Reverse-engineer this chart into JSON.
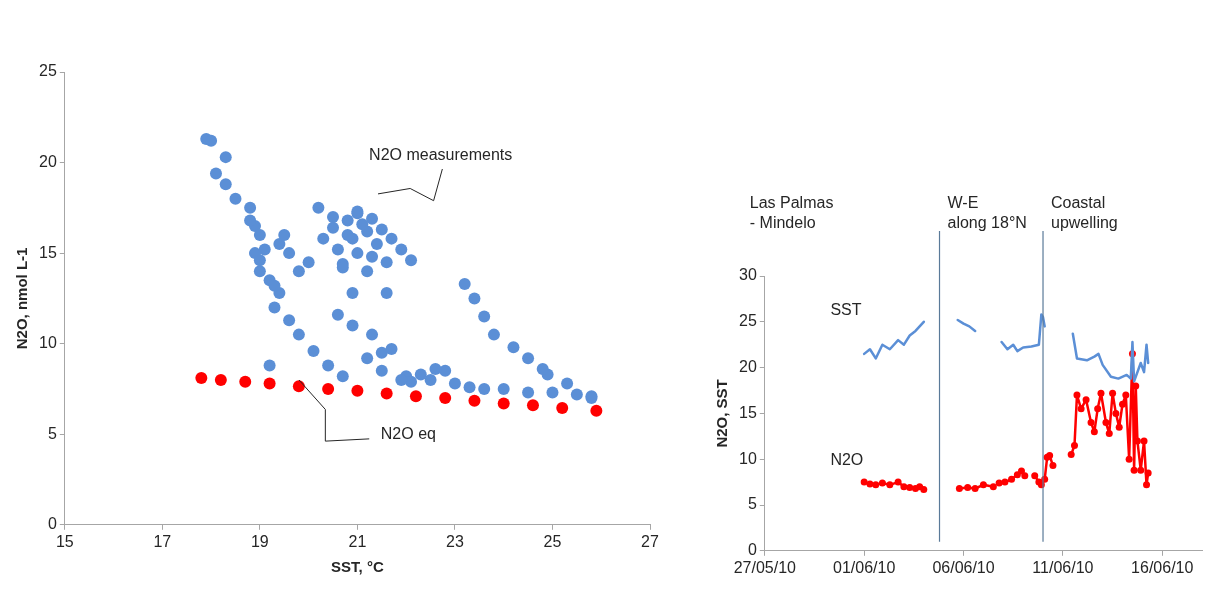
{
  "chart_data": [
    {
      "type": "scatter",
      "xlabel": "SST, °C",
      "ylabel": "N2O, nmol L-1",
      "xlim": [
        15,
        27
      ],
      "xticks": [
        15,
        17,
        19,
        21,
        23,
        25,
        27
      ],
      "ylim": [
        0,
        25
      ],
      "yticks": [
        0,
        5,
        10,
        15,
        20,
        25
      ],
      "marker": "circle",
      "series": [
        {
          "name": "N2O measurements",
          "color": "#5b8fd6",
          "x": [
            17.9,
            18.0,
            18.3,
            18.1,
            18.3,
            18.5,
            18.8,
            18.9,
            19.0,
            18.9,
            19.0,
            19.2,
            19.4,
            19.3,
            19.6,
            19.8,
            20.1,
            20.4,
            20.7,
            19.4,
            19.6,
            19.8,
            19.5,
            20.0,
            18.8,
            19.1,
            19.3,
            19.0,
            20.2,
            20.5,
            21.0,
            20.8,
            21.2,
            21.4,
            21.0,
            20.6,
            21.3,
            21.6,
            21.2,
            20.5,
            20.9,
            21.1,
            20.7,
            20.6,
            20.9,
            21.3,
            21.5,
            21.2,
            21.7,
            21.5,
            22.0,
            22.5,
            23.0,
            22.3,
            22.8,
            23.3,
            23.6,
            24.0,
            24.5,
            25.0,
            25.5,
            25.8,
            23.2,
            23.4,
            23.6,
            23.8,
            24.2,
            24.5,
            24.9,
            25.3,
            25.8,
            24.8,
            19.2,
            21.6,
            22.1,
            22.6,
            21.9,
            20.9,
            21.0,
            21.3,
            20.8,
            21.5,
            21.7,
            21.9,
            22.1,
            20.3,
            20.7
          ],
          "values": [
            21.3,
            21.2,
            20.3,
            19.4,
            18.8,
            18.0,
            17.5,
            16.5,
            16.0,
            15.0,
            14.0,
            13.5,
            12.8,
            12.0,
            11.3,
            10.5,
            9.6,
            8.8,
            8.2,
            15.5,
            15.0,
            14.0,
            16.0,
            14.5,
            16.8,
            15.2,
            13.2,
            14.6,
            17.5,
            17.0,
            17.2,
            16.0,
            16.2,
            15.5,
            15.0,
            15.2,
            14.8,
            14.5,
            14.0,
            16.4,
            15.8,
            16.6,
            14.4,
            11.6,
            11.0,
            10.5,
            9.5,
            9.2,
            9.7,
            8.5,
            8.2,
            8.0,
            7.8,
            8.3,
            8.5,
            7.6,
            7.5,
            7.5,
            7.3,
            7.3,
            7.2,
            7.1,
            13.3,
            12.5,
            11.5,
            10.5,
            9.8,
            9.2,
            8.3,
            7.8,
            7.0,
            8.6,
            8.8,
            12.8,
            7.9,
            8.6,
            8.0,
            12.8,
            17.3,
            16.9,
            16.8,
            16.3,
            15.8,
            15.2,
            14.6,
            15.8,
            14.2
          ]
        },
        {
          "name": "N2O eq",
          "color": "#ff0000",
          "x": [
            17.8,
            18.2,
            18.7,
            19.2,
            19.8,
            20.4,
            21.0,
            21.6,
            22.2,
            22.8,
            23.4,
            24.0,
            24.6,
            25.2,
            25.9
          ],
          "values": [
            8.1,
            8.0,
            7.9,
            7.8,
            7.65,
            7.5,
            7.4,
            7.25,
            7.1,
            7.0,
            6.85,
            6.7,
            6.6,
            6.45,
            6.3
          ]
        }
      ]
    },
    {
      "type": "line",
      "ylabel": "N2O, SST",
      "annotations": [
        "Las Palmas\n- Mindelo",
        "W-E\nalong 18°N",
        "Coastal\nupwelling"
      ],
      "xlim": [
        "--05-27",
        "--06-18"
      ],
      "xticks": [
        {
          "value": "--05-27",
          "label": "27/05/10"
        },
        {
          "value": "--06-01",
          "label": "01/06/10"
        },
        {
          "value": "--06-06",
          "label": "06/06/10"
        },
        {
          "value": "--06-11",
          "label": "11/06/10"
        },
        {
          "value": "--06-16",
          "label": "16/06/10"
        }
      ],
      "ylim": [
        0,
        30
      ],
      "yticks": [
        0,
        5,
        10,
        15,
        20,
        25,
        30
      ],
      "ref_lines": [
        {
          "axis": "x",
          "value": "--06-04T19:00",
          "color": "#5a7a99"
        },
        {
          "axis": "x",
          "value": "--06-10T00:00",
          "color": "#5a7a99"
        }
      ],
      "series": [
        {
          "name": "SST",
          "color": "#5b8fd6",
          "marker": "none",
          "x": [
            "--06-01T00:00",
            "--06-01T07:00",
            "--06-01T14:00",
            "--06-01T22:00",
            "--06-02T07:00",
            "--06-02T17:00",
            "--06-03T00:00",
            "--06-03T07:00",
            "--06-03T14:00",
            "--06-03T19:00",
            "--06-04T00:00",
            "--06-05T00:00",
            "--06-05T17:00",
            "--06-06T00:00",
            "--06-06T07:00",
            "--06-06T14:00",
            "--06-07T00:00",
            "--06-07T22:00",
            "--06-08T05:00",
            "--06-08T12:00",
            "--06-08T17:00",
            "--06-09T00:00",
            "--06-09T10:00",
            "--06-09T19:00",
            "--06-09T22:00",
            "--06-10T00:00",
            "--06-10T02:00",
            "--06-10T12:00",
            "--06-11T12:00",
            "--06-11T17:00",
            "--06-12T05:00",
            "--06-12T14:00",
            "--06-12T19:00",
            "--06-13T00:00",
            "--06-13T10:00",
            "--06-13T19:00",
            "--06-14T05:00",
            "--06-14T10:00",
            "--06-14T12:00",
            "--06-14T14:00",
            "--06-14T22:00",
            "--06-15T02:00",
            "--06-15T05:00",
            "--06-15T07:00"
          ],
          "values": [
            21.5,
            22.0,
            21.0,
            22.5,
            22.0,
            23.0,
            22.5,
            23.5,
            24.0,
            24.5,
            25.0,
            null,
            25.2,
            24.8,
            24.5,
            24.0,
            null,
            22.8,
            22.0,
            22.5,
            21.8,
            22.2,
            22.3,
            22.5,
            25.8,
            25.5,
            24.5,
            null,
            23.7,
            21.0,
            20.8,
            21.2,
            21.5,
            20.3,
            19.0,
            18.8,
            19.2,
            18.8,
            22.8,
            18.5,
            20.5,
            19.5,
            22.5,
            20.5
          ]
        },
        {
          "name": "N2O",
          "color": "#ff0000",
          "marker": "circle",
          "x": [
            "--06-01T00:00",
            "--06-01T07:00",
            "--06-01T14:00",
            "--06-01T22:00",
            "--06-02T07:00",
            "--06-02T17:00",
            "--06-03T00:00",
            "--06-03T07:00",
            "--06-03T14:00",
            "--06-03T19:00",
            "--06-04T00:00",
            "--06-05T00:00",
            "--06-05T19:00",
            "--06-06T05:00",
            "--06-06T14:00",
            "--06-07T00:00",
            "--06-07T12:00",
            "--06-07T16:00",
            "--06-07T19:00",
            "--06-08T02:00",
            "--06-08T10:00",
            "--06-08T17:00",
            "--06-08T22:00",
            "--06-09T02:00",
            "--06-09T08:00",
            "--06-09T14:00",
            "--06-09T19:00",
            "--06-09T22:00",
            "--06-10T02:00",
            "--06-10T05:00",
            "--06-10T08:00",
            "--06-10T12:00",
            "--06-10T22:00",
            "--06-11T10:00",
            "--06-11T14:00",
            "--06-11T17:00",
            "--06-11T22:00",
            "--06-12T04:00",
            "--06-12T10:00",
            "--06-12T14:00",
            "--06-12T18:00",
            "--06-12T22:00",
            "--06-13T04:00",
            "--06-13T08:00",
            "--06-13T12:00",
            "--06-13T16:00",
            "--06-13T20:00",
            "--06-14T00:00",
            "--06-14T04:00",
            "--06-14T08:00",
            "--06-14T12:00",
            "--06-14T14:00",
            "--06-14T16:00",
            "--06-14T18:00",
            "--06-14T22:00",
            "--06-15T02:00",
            "--06-15T05:00",
            "--06-15T07:00"
          ],
          "values": [
            7.5,
            7.3,
            7.2,
            7.4,
            7.2,
            7.5,
            7.0,
            6.9,
            6.8,
            7.0,
            6.7,
            null,
            6.8,
            6.9,
            6.8,
            7.2,
            7.0,
            null,
            7.4,
            7.5,
            7.8,
            8.3,
            8.7,
            8.2,
            null,
            8.2,
            7.5,
            7.2,
            7.8,
            10.2,
            10.4,
            9.3,
            null,
            10.5,
            11.5,
            17.0,
            15.5,
            16.5,
            14.0,
            13.0,
            15.5,
            17.2,
            14.0,
            12.8,
            17.2,
            15.0,
            13.5,
            16.0,
            17.0,
            10.0,
            21.5,
            8.8,
            18.0,
            12.0,
            8.8,
            12.0,
            7.2,
            8.5
          ]
        }
      ]
    }
  ]
}
